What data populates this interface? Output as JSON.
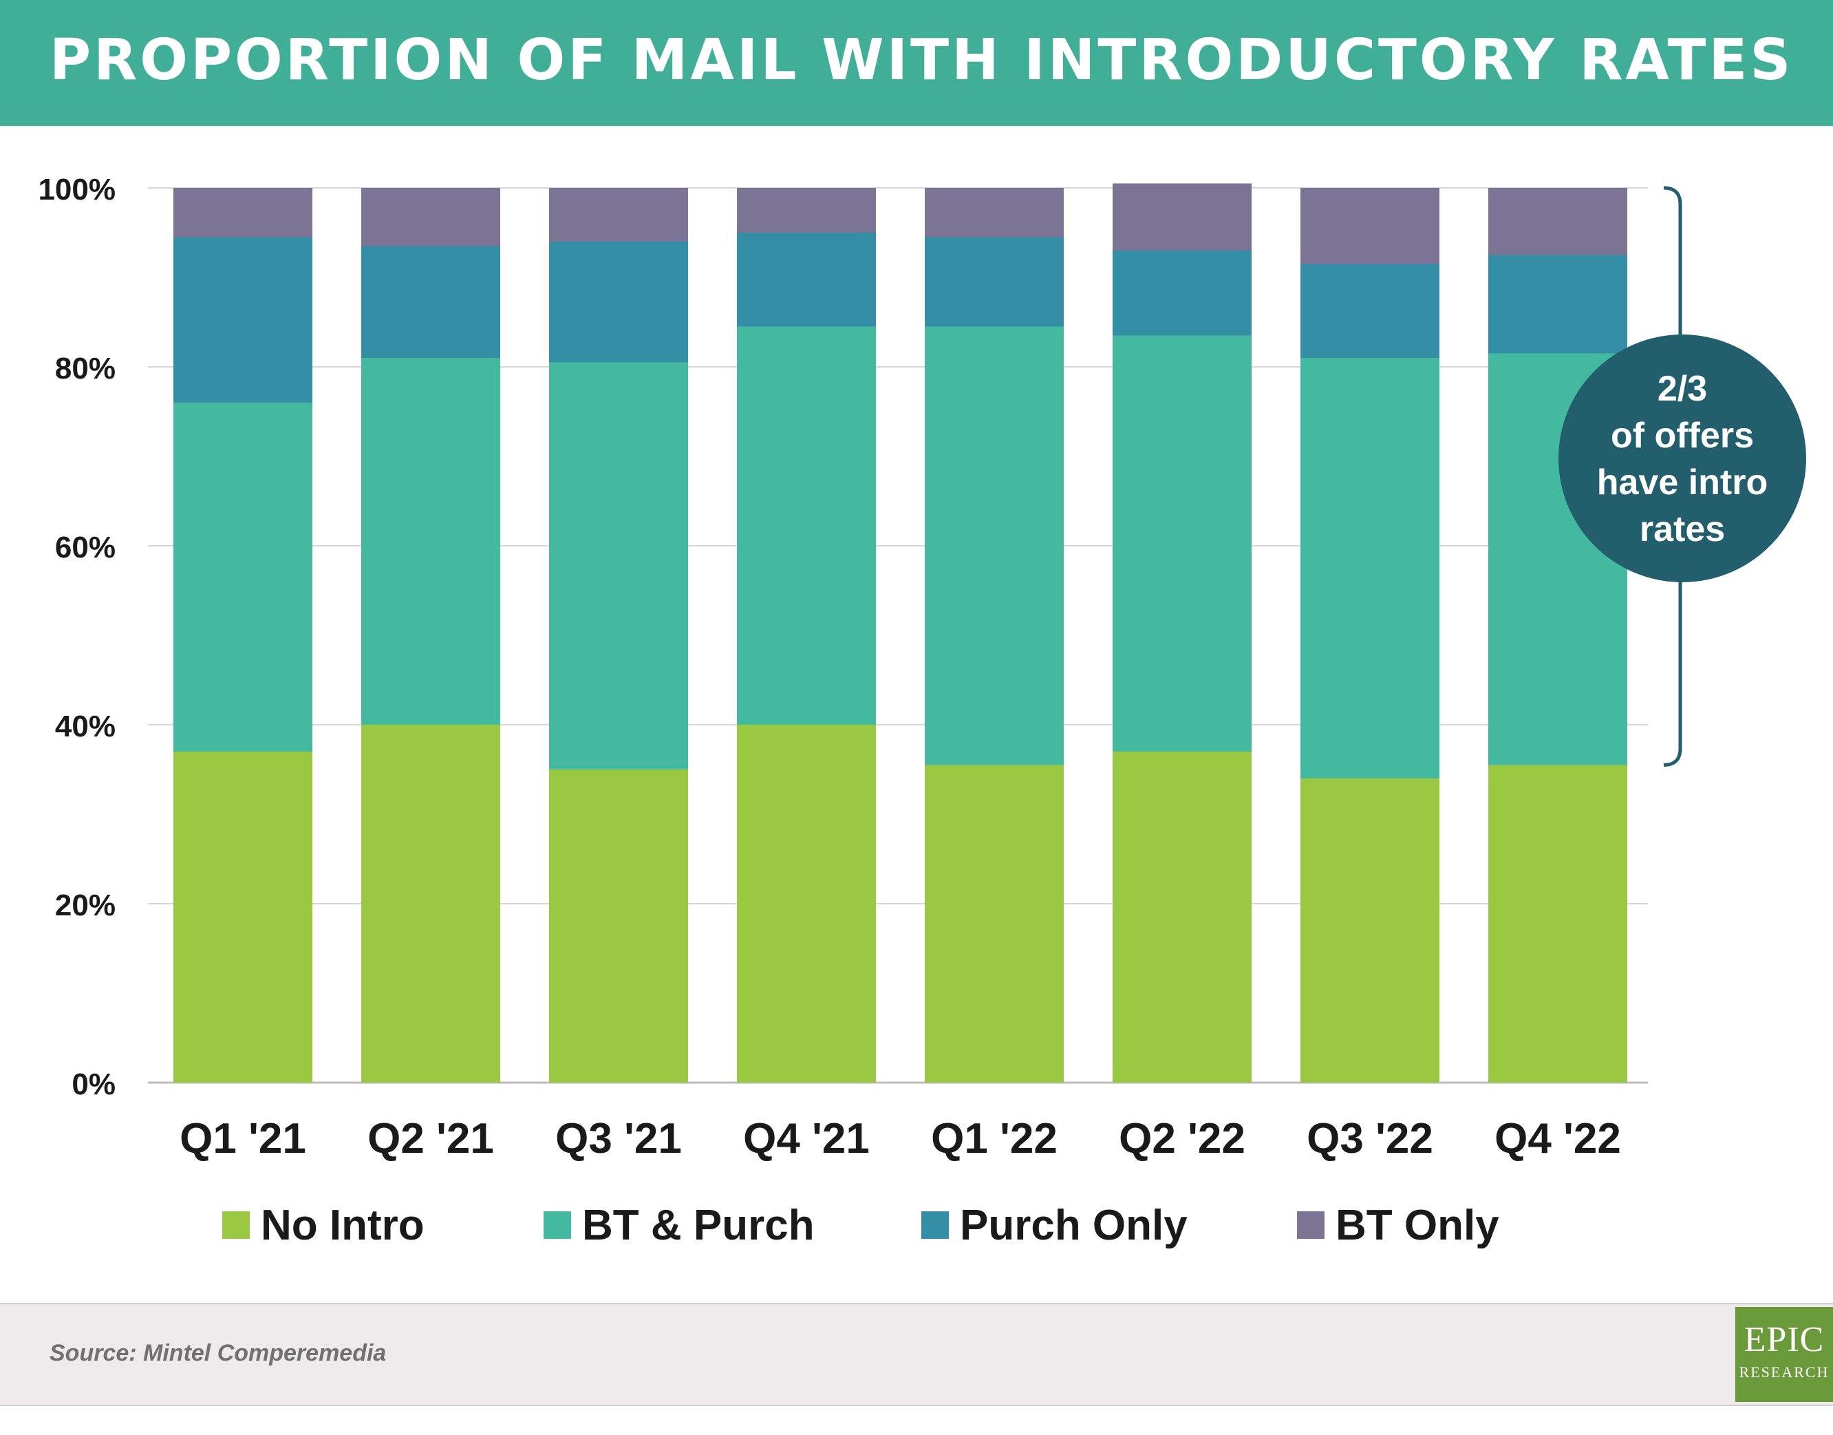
{
  "header": {
    "title": "PROPORTION OF MAIL WITH INTRODUCTORY RATES"
  },
  "chart_data": {
    "type": "bar",
    "stacked": true,
    "categories": [
      "Q1 '21",
      "Q2 '21",
      "Q3 '21",
      "Q4 '21",
      "Q1 '22",
      "Q2 '22",
      "Q3 '22",
      "Q4 '22"
    ],
    "series": [
      {
        "name": "No Intro",
        "color": "#9bc843",
        "values": [
          37,
          40,
          35,
          40,
          35.5,
          37,
          34,
          35.5
        ]
      },
      {
        "name": "BT & Purch",
        "color": "#43b99f",
        "values": [
          39,
          41,
          45.5,
          44.5,
          49,
          46.5,
          47,
          46
        ]
      },
      {
        "name": "Purch Only",
        "color": "#348ea6",
        "values": [
          18.5,
          12.5,
          13.5,
          10.5,
          10,
          9.5,
          10.5,
          11
        ]
      },
      {
        "name": "BT Only",
        "color": "#7d7394",
        "values": [
          5.5,
          6.5,
          6,
          5,
          5.5,
          7.5,
          8.5,
          7.5
        ]
      }
    ],
    "ylim": [
      0,
      100
    ],
    "yticks": [
      "0%",
      "20%",
      "40%",
      "60%",
      "80%",
      "100%"
    ],
    "ytick_values": [
      0,
      20,
      40,
      60,
      80,
      100
    ],
    "grid": true,
    "legend_position": "bottom",
    "bracket_range": [
      35.5,
      100
    ],
    "annotation": [
      "2/3",
      "of offers",
      "have intro",
      "rates"
    ],
    "annotation_color": "#225e6c"
  },
  "footer": {
    "source": "Source: Mintel Comperemedia",
    "logo_main": "EPIC",
    "logo_sub": "RESEARCH"
  }
}
